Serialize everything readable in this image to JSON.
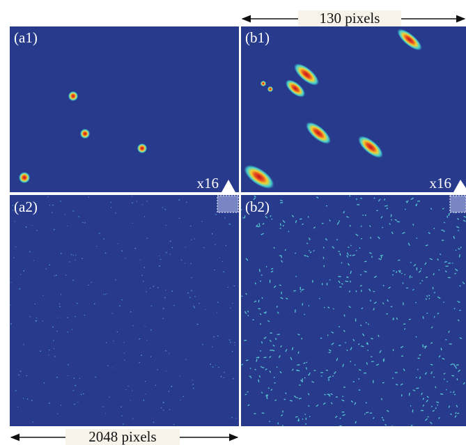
{
  "header": {
    "width_label": "130 pixels"
  },
  "panels": [
    {
      "label": "(a1)",
      "zoom": "x16"
    },
    {
      "label": "(b1)",
      "zoom": "x16"
    },
    {
      "label": "(a2)"
    },
    {
      "label": "(b2)"
    }
  ],
  "footer": {
    "width_label": "2048 pixels"
  }
}
